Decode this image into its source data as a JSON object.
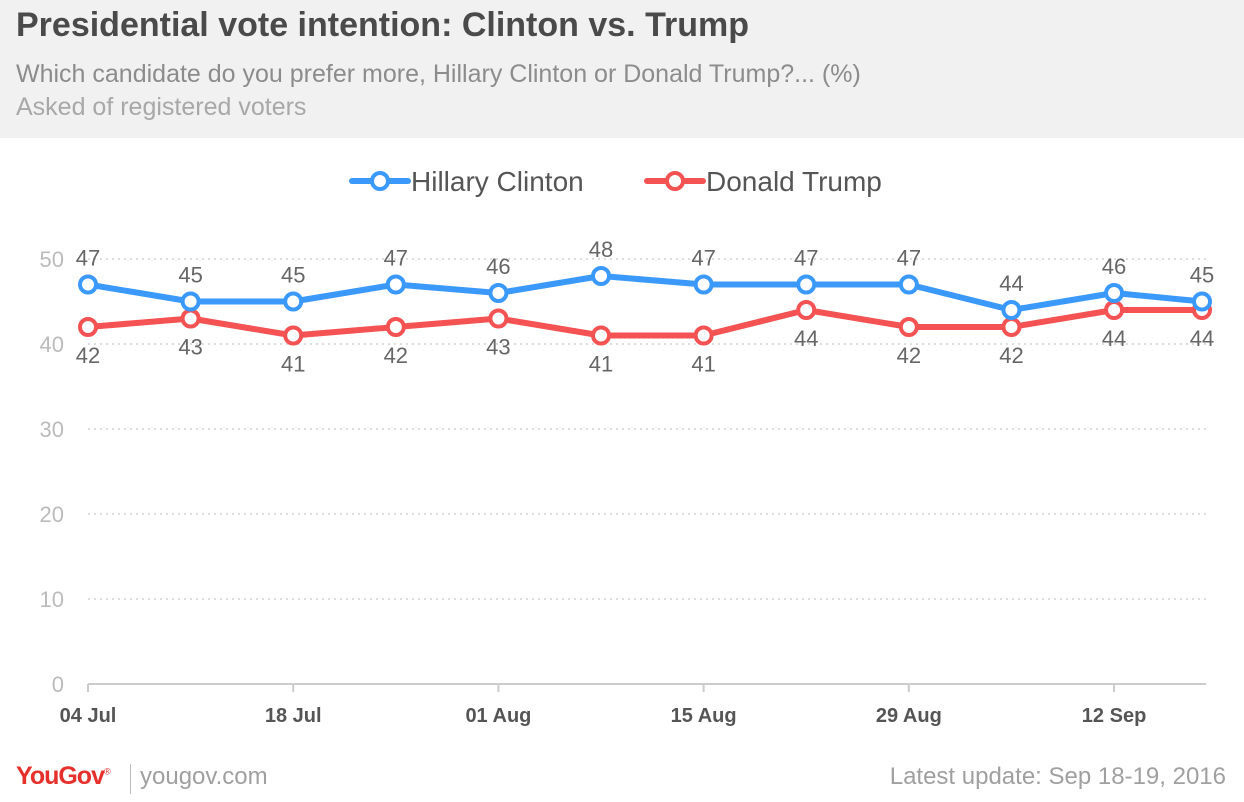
{
  "header": {
    "title": "Presidential vote intention: Clinton vs. Trump",
    "subtitle": "Which candidate do you prefer more, Hillary Clinton or Donald Trump?... (%)",
    "subtitle2": "Asked of registered voters"
  },
  "footer": {
    "logo": "YouGov",
    "logo_mark": "®",
    "url": "yougov.com",
    "update": "Latest update: Sep 18-19, 2016"
  },
  "colors": {
    "clinton": "#3b99fc",
    "trump": "#f55253",
    "grid": "#dddddd",
    "tick": "#bbbbbb",
    "label": "#666666",
    "xtick": "#555555"
  },
  "chart_data": {
    "type": "line",
    "x_tick_labels": [
      "04 Jul",
      "18 Jul",
      "01 Aug",
      "15 Aug",
      "29 Aug",
      "12 Sep"
    ],
    "x_tick_values": [
      "2016-07-04",
      "2016-07-18",
      "2016-08-01",
      "2016-08-15",
      "2016-08-29",
      "2016-09-12"
    ],
    "x": [
      "2016-07-04",
      "2016-07-11",
      "2016-07-18",
      "2016-07-25",
      "2016-08-01",
      "2016-08-08",
      "2016-08-15",
      "2016-08-22",
      "2016-08-29",
      "2016-09-05",
      "2016-09-12",
      "2016-09-18"
    ],
    "series": [
      {
        "name": "Hillary Clinton",
        "values": [
          47,
          45,
          45,
          47,
          46,
          48,
          47,
          47,
          47,
          44,
          46,
          45
        ],
        "label_position": "above"
      },
      {
        "name": "Donald Trump",
        "values": [
          42,
          43,
          41,
          42,
          43,
          41,
          41,
          44,
          42,
          42,
          44,
          44
        ],
        "label_position": "below"
      }
    ],
    "y_ticks": [
      0,
      10,
      20,
      30,
      40,
      50
    ],
    "ylim": [
      0,
      50
    ],
    "xlim": [
      "2016-07-04",
      "2016-09-18"
    ],
    "grid": true,
    "legend_position": "top-center"
  }
}
